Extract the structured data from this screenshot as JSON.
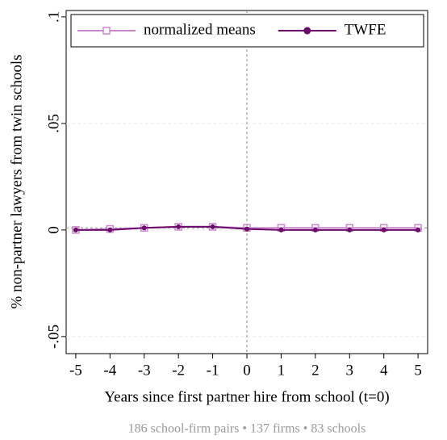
{
  "chart_data": {
    "type": "line",
    "x_label": "Years since first partner hire from school (t=0)",
    "y_label": "% non-partner lawyers from twin schools",
    "note": "186 school-firm pairs • 137 firms • 83 schools",
    "x": [
      -5,
      -4,
      -3,
      -2,
      -1,
      0,
      1,
      2,
      3,
      4,
      5
    ],
    "series": [
      {
        "name": "normalized means",
        "color": "#cc88cc",
        "marker": "square",
        "values": [
          0,
          0.0005,
          0.001,
          0.0015,
          0.0015,
          0.001,
          0.001,
          0.001,
          0.001,
          0.001,
          0.001
        ]
      },
      {
        "name": "TWFE",
        "color": "#6a0a6a",
        "marker": "circle",
        "values": [
          0,
          0,
          0.001,
          0.0015,
          0.0015,
          0.0005,
          0,
          0,
          0,
          0,
          0
        ]
      }
    ],
    "xlim": [
      -5.28,
      5.28
    ],
    "xticks": [
      -5,
      -4,
      -3,
      -2,
      -1,
      0,
      1,
      2,
      3,
      4,
      5
    ],
    "ylim": [
      -0.058,
      0.103
    ],
    "yticks": [
      {
        "value": -0.05,
        "label": "-.05"
      },
      0,
      {
        "value": 0.05,
        "label": ".05"
      },
      {
        "value": 0.1,
        "label": ".1"
      }
    ],
    "grid": true,
    "vline": 0,
    "hline": 0.001,
    "legend": "top"
  }
}
